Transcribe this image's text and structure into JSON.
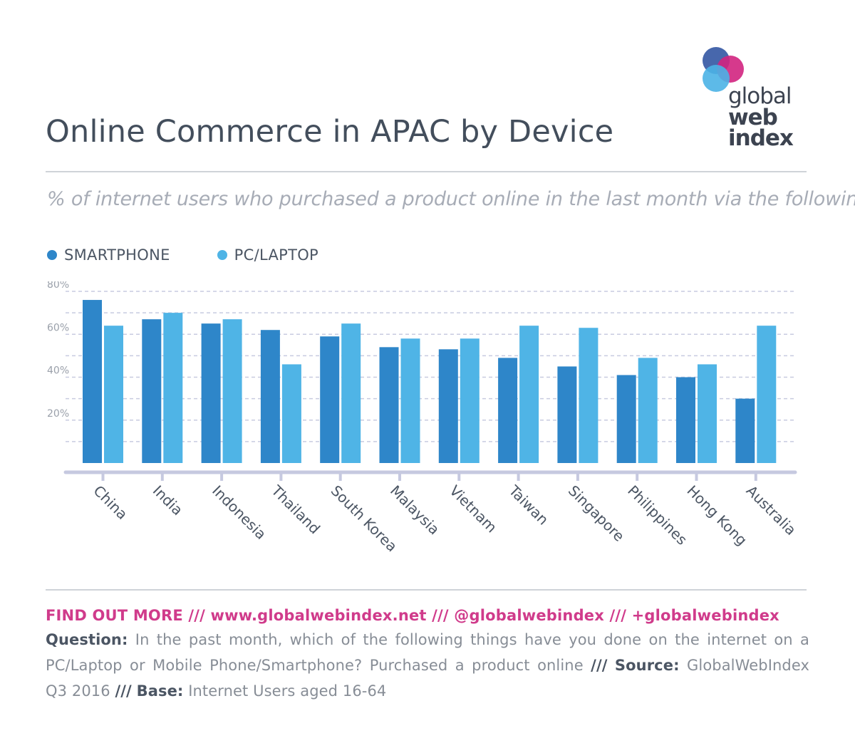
{
  "header": {
    "title": "Online Commerce in APAC by Device",
    "subtitle": "% of internet users who purchased a product online in the last month via the following"
  },
  "logo": {
    "words": [
      "global",
      "web",
      "index"
    ],
    "colors": [
      "#3d5fa8",
      "#d1237f",
      "#4bb2e5"
    ]
  },
  "legend": [
    {
      "label": "SMARTPHONE",
      "color": "#2e86c9"
    },
    {
      "label": "PC/LAPTOP",
      "color": "#4fb4e6"
    }
  ],
  "chart_data": {
    "type": "bar",
    "categories": [
      "China",
      "India",
      "Indonesia",
      "Thailand",
      "South Korea",
      "Malaysia",
      "Vietnam",
      "Taiwan",
      "Singapore",
      "Philippines",
      "Hong Kong",
      "Australia"
    ],
    "series": [
      {
        "name": "SMARTPHONE",
        "values": [
          76,
          67,
          65,
          62,
          59,
          54,
          53,
          49,
          45,
          41,
          40,
          30
        ]
      },
      {
        "name": "PC/LAPTOP",
        "values": [
          64,
          70,
          67,
          46,
          65,
          58,
          58,
          64,
          63,
          49,
          46,
          64
        ]
      }
    ],
    "ylim": [
      0,
      80
    ],
    "yticks": [
      {
        "value": 80,
        "label": "80%"
      },
      {
        "value": 60,
        "label": "60%"
      },
      {
        "value": 40,
        "label": "40%"
      },
      {
        "value": 20,
        "label": "20%"
      }
    ],
    "gridlines": [
      10,
      20,
      30,
      40,
      50,
      60,
      70,
      80
    ],
    "colors": [
      "#2e86c9",
      "#4fb4e6"
    ],
    "grid": true,
    "legend_position": "top-left"
  },
  "footer": {
    "links": "FIND OUT MORE  ///  www.globalwebindex.net  ///  @globalwebindex  ///  +globalwebindex",
    "question_label": "Question:",
    "question_text": "In the past month, which of the following things have you done on the internet on a PC/Laptop or Mobile Phone/Smartphone? Purchased a product online",
    "sep1": "///",
    "source_label": "Source:",
    "source_text": "GlobalWebIndex Q3 2016",
    "sep2": "///",
    "base_label": "Base:",
    "base_text": "Internet Users aged 16-64"
  }
}
